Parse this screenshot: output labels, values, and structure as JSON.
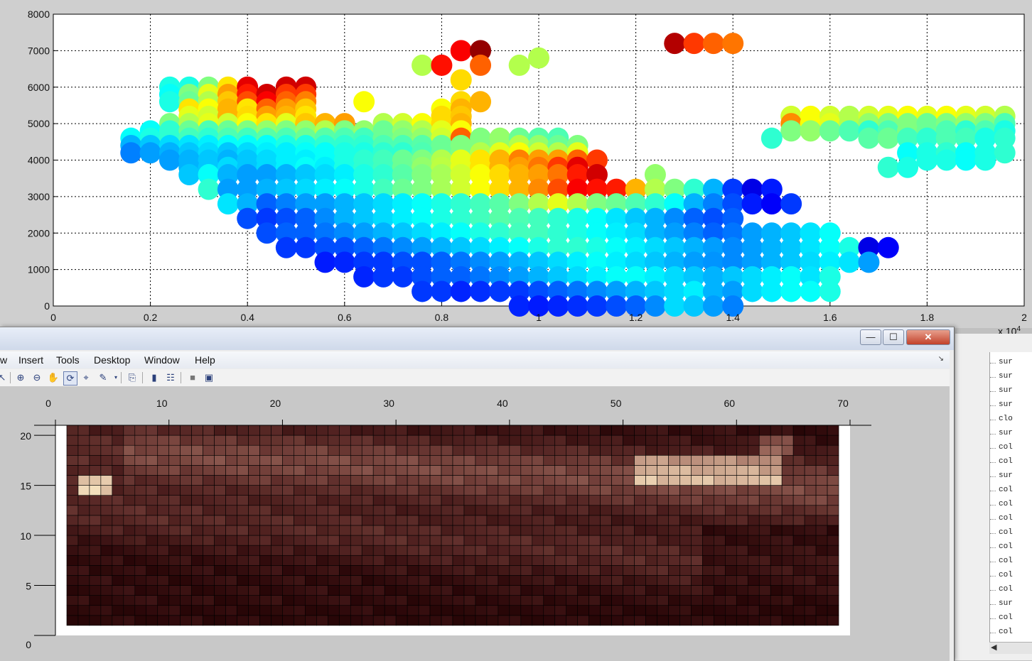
{
  "scatter_plot": {
    "x_ticks": [
      "0",
      "0.2",
      "0.4",
      "0.6",
      "0.8",
      "1",
      "1.2",
      "1.4",
      "1.6",
      "1.8",
      "2"
    ],
    "y_ticks": [
      "0",
      "1000",
      "2000",
      "3000",
      "4000",
      "5000",
      "6000",
      "7000",
      "8000"
    ],
    "exponent_label": "x 10",
    "exponent_power": "4"
  },
  "figure_window": {
    "title_buttons": {
      "minimize": "—",
      "maximize": "☐",
      "close": "✕"
    },
    "menu": [
      "w",
      "Insert",
      "Tools",
      "Desktop",
      "Window",
      "Help"
    ],
    "toolbar_icons": [
      "pointer-icon",
      "zoom-in-icon",
      "zoom-out-icon",
      "pan-icon",
      "rotate-icon",
      "data-cursor-icon",
      "brush-icon",
      "link-icon",
      "colorbar-icon",
      "legend-icon",
      "hide-plot-tools-icon",
      "show-plot-tools-icon"
    ]
  },
  "heatmap": {
    "x_ticks": [
      "0",
      "10",
      "20",
      "30",
      "40",
      "50",
      "60",
      "70"
    ],
    "y_ticks": [
      "0",
      "5",
      "10",
      "15",
      "20"
    ]
  },
  "workspace_list": [
    "sur",
    "sur",
    "sur",
    "sur",
    "clo",
    "sur",
    "col",
    "col",
    "sur",
    "col",
    "col",
    "col",
    "col",
    "col",
    "col",
    "col",
    "col",
    "sur",
    "col",
    "col"
  ],
  "chart_data": [
    {
      "type": "scatter",
      "xlim": [
        0,
        20000
      ],
      "ylim": [
        0,
        8000
      ],
      "grid": true,
      "colormap": "jet",
      "marker": "filled-circle",
      "x_step": 400,
      "y_step": 200,
      "rows": [
        {
          "y": 7200,
          "x0": 12800,
          "c": [
            0.95,
            0.82,
            0.78,
            0.76
          ]
        },
        {
          "y": 7000,
          "x0": 8400,
          "c": [
            0.88,
            0.98
          ]
        },
        {
          "y": 6800,
          "x0": 10000,
          "c": [
            0.55
          ]
        },
        {
          "y": 6600,
          "x0": 7600,
          "c": [
            0.55,
            0.86,
            -1,
            0.78,
            -1,
            0.55
          ]
        },
        {
          "y": 6200,
          "x0": 8400,
          "c": [
            0.66
          ]
        },
        {
          "y": 6000,
          "x0": 2400,
          "c": [
            0.4,
            0.4,
            0.5,
            0.65,
            0.9,
            -1,
            0.92,
            0.92
          ]
        },
        {
          "y": 5800,
          "x0": 2400,
          "c": [
            0.38,
            0.5,
            0.6,
            0.72,
            0.85,
            0.92,
            0.82,
            0.82
          ]
        },
        {
          "y": 5600,
          "x0": 2400,
          "c": [
            0.4,
            0.48,
            0.55,
            0.68,
            0.8,
            0.88,
            0.78,
            0.75,
            -1,
            -1,
            0.62,
            -1,
            -1,
            -1,
            -1,
            0.66,
            0.7
          ]
        },
        {
          "y": 5400,
          "x0": 2800,
          "c": [
            0.65,
            0.62,
            0.7,
            0.65,
            0.78,
            0.72,
            0.68,
            -1,
            -1,
            -1,
            -1,
            -1,
            -1,
            0.62,
            0.7
          ]
        },
        {
          "y": 5200,
          "x0": 2800,
          "c": [
            0.6,
            0.58,
            0.7,
            0.66,
            0.72,
            0.7,
            0.65,
            -1,
            -1,
            -1,
            -1,
            -1,
            -1,
            0.66,
            0.68,
            -1,
            -1,
            -1,
            -1,
            -1,
            -1,
            -1,
            -1,
            -1,
            -1,
            -1,
            -1,
            -1,
            -1,
            -1,
            -1,
            0.58,
            0.62,
            0.58,
            0.55,
            0.58,
            0.6,
            0.62,
            0.6,
            0.62,
            0.6,
            0.58,
            0.55,
            0.58
          ]
        },
        {
          "y": 5000,
          "x0": 2400,
          "c": [
            0.5,
            0.55,
            0.6,
            0.58,
            0.62,
            0.65,
            0.6,
            0.68,
            0.7,
            0.72,
            -1,
            0.55,
            0.58,
            0.62,
            0.66,
            0.7,
            -1,
            -1,
            -1,
            -1,
            -1,
            -1,
            -1,
            -1,
            -1,
            -1,
            -1,
            -1,
            -1,
            -1,
            -1,
            -1,
            0.74,
            0.62,
            0.6,
            0.55,
            0.52,
            0.5,
            0.5,
            0.48,
            0.5,
            0.52,
            0.5,
            0.45,
            0.42
          ]
        },
        {
          "y": 4800,
          "x0": 2000,
          "c": [
            0.38,
            0.42,
            0.48,
            0.45,
            0.48,
            0.5,
            0.52,
            0.5,
            0.52,
            0.55,
            0.5,
            0.52,
            0.48,
            0.52,
            0.55,
            0.6,
            0.62,
            -1,
            -1,
            -1,
            -1,
            -1,
            -1,
            -1,
            -1,
            -1,
            -1,
            -1,
            -1,
            -1,
            -1,
            -1,
            -1,
            0.5,
            0.52,
            0.48,
            0.45,
            0.42,
            0.45,
            0.5,
            0.48,
            0.45,
            0.42,
            0.45,
            0.4,
            0.4
          ]
        },
        {
          "y": 4600,
          "x0": 1600,
          "c": [
            0.38,
            0.4,
            0.42,
            0.44,
            0.42,
            0.45,
            0.44,
            0.46,
            0.45,
            0.48,
            0.46,
            0.45,
            0.44,
            0.48,
            0.5,
            0.52,
            0.58,
            0.78,
            0.5,
            0.52,
            0.48,
            0.46,
            0.45,
            -1,
            -1,
            -1,
            -1,
            -1,
            -1,
            -1,
            -1,
            -1,
            -1,
            0.42,
            -1,
            -1,
            -1,
            -1,
            0.46,
            0.48,
            0.44,
            0.42,
            0.45,
            0.44,
            0.4,
            0.42
          ]
        },
        {
          "y": 4400,
          "x0": 1600,
          "c": [
            0.3,
            0.32,
            0.34,
            0.35,
            0.36,
            0.38,
            0.38,
            0.38,
            0.4,
            0.4,
            0.42,
            0.42,
            0.42,
            0.45,
            0.45,
            0.46,
            0.48,
            0.5,
            0.5,
            0.52,
            0.55,
            0.52,
            0.48,
            0.5
          ]
        },
        {
          "y": 4200,
          "x0": 1600,
          "c": [
            0.25,
            0.28,
            0.3,
            0.32,
            0.34,
            0.32,
            0.34,
            0.36,
            0.36,
            0.38,
            0.38,
            0.4,
            0.4,
            0.42,
            0.42,
            0.45,
            0.48,
            0.5,
            0.55,
            0.6,
            0.62,
            0.58,
            0.55,
            0.6,
            -1,
            -1,
            -1,
            -1,
            -1,
            -1,
            -1,
            -1,
            -1,
            -1,
            -1,
            -1,
            -1,
            -1,
            -1,
            -1,
            0.38,
            0.4,
            0.42,
            0.38,
            0.4,
            0.42
          ]
        },
        {
          "y": 4000,
          "x0": 2400,
          "c": [
            0.28,
            0.3,
            0.32,
            0.3,
            0.32,
            0.34,
            0.36,
            0.36,
            0.38,
            0.4,
            0.42,
            0.44,
            0.48,
            0.5,
            0.55,
            0.6,
            0.65,
            0.7,
            0.75,
            0.72,
            0.72,
            0.78,
            0.82,
            -1,
            -1,
            -1,
            -1,
            -1,
            -1,
            -1,
            -1,
            -1,
            -1,
            -1,
            -1,
            -1,
            -1,
            -1,
            -1,
            0.4,
            0.4,
            0.38,
            0.4
          ]
        },
        {
          "y": 3800,
          "x0": 2800,
          "c": [
            0.3,
            0.32,
            0.34,
            0.32,
            0.34,
            0.36,
            0.38,
            0.36,
            0.4,
            0.42,
            0.44,
            0.48,
            0.52,
            0.56,
            0.6,
            0.65,
            0.7,
            0.72,
            0.76,
            0.82,
            0.9,
            -1,
            -1,
            -1,
            -1,
            -1,
            -1,
            -1,
            -1,
            -1,
            -1,
            -1,
            -1,
            -1,
            -1,
            -1,
            0.42,
            0.4
          ]
        },
        {
          "y": 3600,
          "x0": 2800,
          "c": [
            0.32,
            0.38,
            0.3,
            0.28,
            0.28,
            0.3,
            0.32,
            0.34,
            0.36,
            0.4,
            0.42,
            0.46,
            0.5,
            0.54,
            0.58,
            0.62,
            0.66,
            0.7,
            0.72,
            0.76,
            0.85,
            0.92,
            -1,
            -1,
            0.52
          ]
        },
        {
          "y": 3200,
          "x0": 3200,
          "c": [
            0.42,
            0.28,
            0.28,
            0.3,
            0.32,
            0.34,
            0.36,
            0.38,
            0.4,
            0.44,
            0.48,
            0.5,
            0.54,
            0.58,
            0.62,
            0.66,
            0.7,
            0.74,
            0.8,
            0.88,
            0.86,
            0.85,
            0.7,
            0.55,
            0.5,
            0.42,
            0.3,
            0.18,
            0.1,
            0.15
          ]
        },
        {
          "y": 2800,
          "x0": 3600,
          "c": [
            0.35,
            0.3,
            0.22,
            0.25,
            0.28,
            0.28,
            0.3,
            0.32,
            0.34,
            0.36,
            0.38,
            0.4,
            0.42,
            0.44,
            0.46,
            0.5,
            0.55,
            0.6,
            0.55,
            0.5,
            0.48,
            0.45,
            0.42,
            0.38,
            0.3,
            0.25,
            0.2,
            0.15,
            0.12,
            0.18
          ]
        },
        {
          "y": 2400,
          "x0": 4000,
          "c": [
            0.2,
            0.18,
            0.2,
            0.22,
            0.26,
            0.3,
            0.32,
            0.34,
            0.36,
            0.38,
            0.4,
            0.42,
            0.44,
            0.46,
            0.45,
            0.44,
            0.42,
            0.4,
            0.38,
            0.35,
            0.32,
            0.3,
            0.26,
            0.22,
            0.2,
            0.22
          ]
        },
        {
          "y": 2000,
          "x0": 4400,
          "c": [
            0.2,
            0.22,
            0.22,
            0.24,
            0.26,
            0.28,
            0.3,
            0.32,
            0.34,
            0.36,
            0.38,
            0.4,
            0.42,
            0.44,
            0.44,
            0.42,
            0.4,
            0.38,
            0.36,
            0.34,
            0.3,
            0.28,
            0.25,
            0.22,
            0.24,
            0.28,
            0.3,
            0.32,
            0.35,
            0.38
          ]
        },
        {
          "y": 1600,
          "x0": 4800,
          "c": [
            0.18,
            0.18,
            0.2,
            0.2,
            0.22,
            0.24,
            0.26,
            0.28,
            0.3,
            0.32,
            0.34,
            0.36,
            0.38,
            0.4,
            0.42,
            0.42,
            0.4,
            0.38,
            0.36,
            0.34,
            0.32,
            0.3,
            0.28,
            0.26,
            0.28,
            0.3,
            0.32,
            0.35,
            0.38,
            0.4,
            0.1,
            0.12
          ]
        },
        {
          "y": 1200,
          "x0": 5600,
          "c": [
            0.15,
            0.16,
            0.18,
            0.18,
            0.2,
            0.2,
            0.22,
            0.24,
            0.26,
            0.28,
            0.3,
            0.32,
            0.34,
            0.36,
            0.38,
            0.36,
            0.34,
            0.32,
            0.3,
            0.28,
            0.27,
            0.26,
            0.28,
            0.3,
            0.32,
            0.34,
            0.36,
            0.35,
            0.28
          ]
        },
        {
          "y": 800,
          "x0": 6400,
          "c": [
            0.16,
            0.18,
            0.18,
            0.2,
            0.22,
            0.22,
            0.24,
            0.26,
            0.28,
            0.3,
            0.32,
            0.34,
            0.36,
            0.38,
            0.38,
            0.36,
            0.34,
            0.32,
            0.3,
            0.32,
            0.34,
            0.36,
            0.38,
            0.35,
            0.4
          ]
        },
        {
          "y": 400,
          "x0": 7600,
          "c": [
            0.18,
            0.18,
            0.16,
            0.17,
            0.18,
            0.18,
            0.2,
            0.22,
            0.24,
            0.26,
            0.28,
            0.3,
            0.32,
            0.34,
            0.36,
            0.3,
            0.28,
            0.34,
            0.36,
            0.38,
            0.38,
            0.4
          ]
        },
        {
          "y": 0,
          "x0": 9600,
          "c": [
            0.16,
            0.15,
            0.16,
            0.17,
            0.18,
            0.2,
            0.22,
            0.26,
            0.34,
            0.32,
            0.28,
            0.25
          ]
        }
      ]
    },
    {
      "type": "heatmap",
      "xlim": [
        0,
        70
      ],
      "ylim": [
        0,
        21
      ],
      "colormap": "pink",
      "ncols": 68,
      "nrows": 20
    }
  ]
}
